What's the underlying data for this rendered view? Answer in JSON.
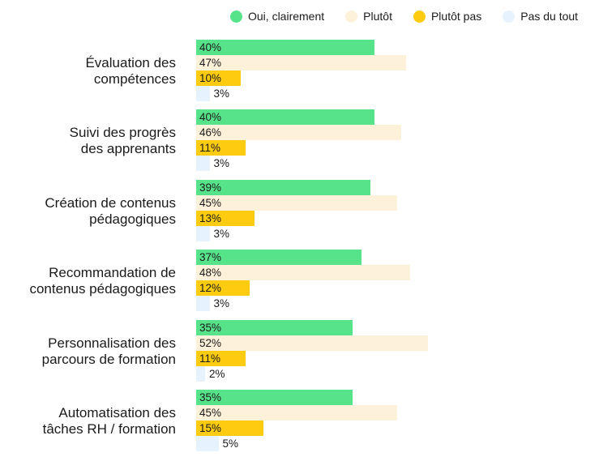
{
  "chart_data": {
    "type": "bar",
    "orientation": "horizontal",
    "legend_position": "top-right",
    "grid": false,
    "categories": [
      [
        "Évaluation des",
        "compétences"
      ],
      [
        "Suivi des progrès",
        "des apprenants"
      ],
      [
        "Création de contenus",
        "pédagogiques"
      ],
      [
        "Recommandation de",
        "contenus pédagogiques"
      ],
      [
        "Personnalisation des",
        "parcours de formation"
      ],
      [
        "Automatisation des",
        "tâches RH / formation"
      ]
    ],
    "series": [
      {
        "name": "Oui, clairement",
        "color": "#57e389",
        "values": [
          40,
          40,
          39,
          37,
          35,
          35
        ]
      },
      {
        "name": "Plutôt",
        "color": "#fdf1d9",
        "values": [
          47,
          46,
          45,
          48,
          52,
          45
        ]
      },
      {
        "name": "Plutôt pas",
        "color": "#fdcb0f",
        "values": [
          10,
          11,
          13,
          12,
          11,
          15
        ]
      },
      {
        "name": "Pas du tout",
        "color": "#e6f2fd",
        "values": [
          3,
          3,
          3,
          3,
          2,
          5
        ]
      }
    ],
    "value_suffix": "%"
  }
}
